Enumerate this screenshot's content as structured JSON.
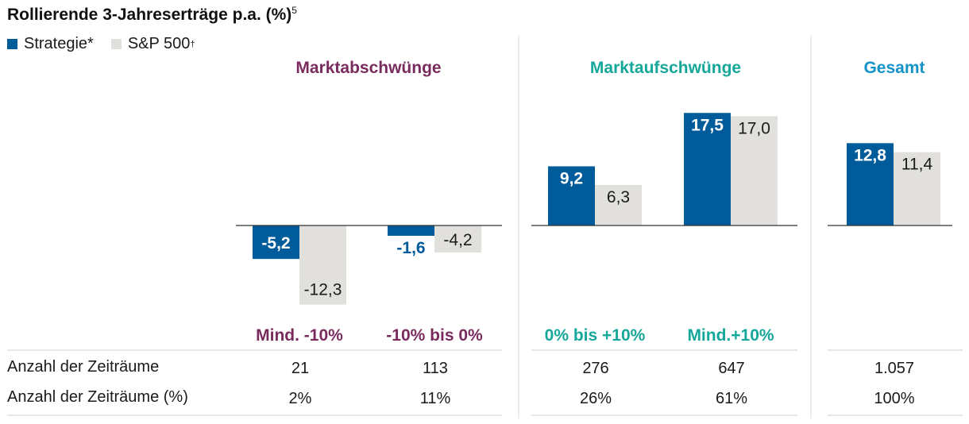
{
  "title": "Rollierende 3-Jahreserträge p.a. (%)",
  "title_sup": "5",
  "legend": [
    {
      "name": "Strategie*",
      "sup": "",
      "color": "#005b9b"
    },
    {
      "name": "S&P 500",
      "sup": "†",
      "color": "#e1e0dc"
    }
  ],
  "colors": {
    "down": "#7a2b5e",
    "up": "#14a79a",
    "total": "#1592c6",
    "strategy": "#005b9b",
    "benchmark": "#e1e0dc"
  },
  "chart_data": {
    "type": "bar",
    "title": "Rollierende 3-Jahreserträge p.a. (%)",
    "groups": [
      "Marktabschwünge",
      "Marktaufschwünge",
      "Gesamt"
    ],
    "categories": [
      "Mind. -10%",
      "-10% bis 0%",
      "0% bis +10%",
      "Mind.+10%",
      ""
    ],
    "category_group": [
      0,
      0,
      1,
      1,
      2
    ],
    "series": [
      {
        "name": "Strategie*",
        "values": [
          -5.2,
          -1.6,
          9.2,
          17.5,
          12.8
        ],
        "labels": [
          "-5,2",
          "-1,6",
          "9,2",
          "17,5",
          "12,8"
        ]
      },
      {
        "name": "S&P 500",
        "values": [
          -12.3,
          -4.2,
          6.3,
          17.0,
          11.4
        ],
        "labels": [
          "-12,3",
          "-4,2",
          "6,3",
          "17,0",
          "11,4"
        ]
      }
    ],
    "grid": false,
    "legend_position": "top-left"
  },
  "table": {
    "rows": [
      {
        "label": "Anzahl der Zeiträume",
        "values": [
          "21",
          "113",
          "276",
          "647",
          "1.057"
        ]
      },
      {
        "label": "Anzahl der Zeiträume (%)",
        "values": [
          "2%",
          "11%",
          "26%",
          "61%",
          "100%"
        ]
      }
    ]
  }
}
